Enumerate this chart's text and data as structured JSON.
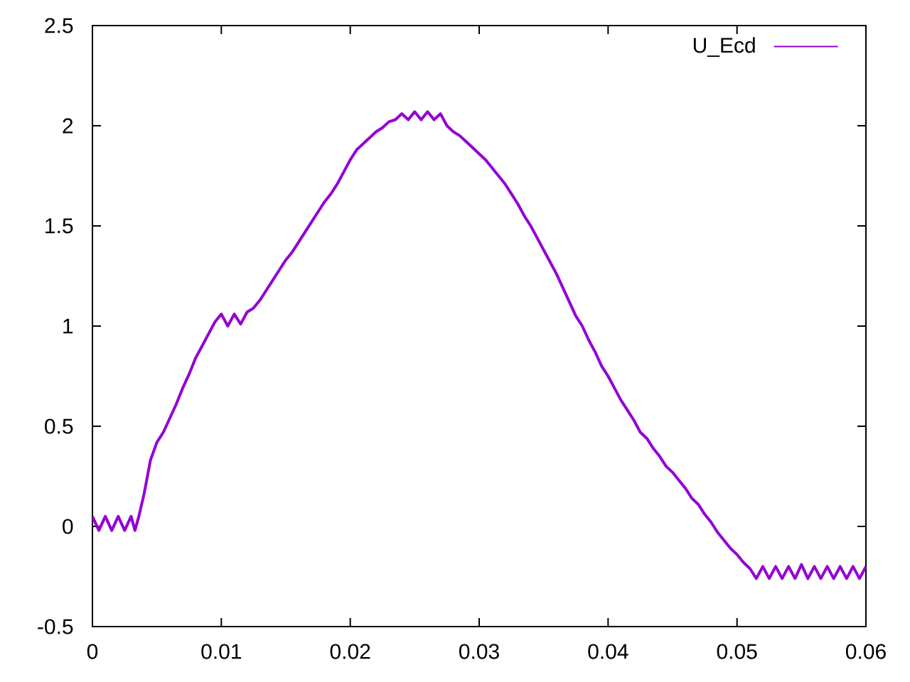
{
  "chart_data": {
    "type": "line",
    "series": [
      {
        "name": "U_Ecd",
        "color": "#9400d3",
        "x": [
          0,
          0.0005,
          0.001,
          0.0015,
          0.002,
          0.0025,
          0.003,
          0.0033,
          0.0036,
          0.004,
          0.0045,
          0.005,
          0.0055,
          0.006,
          0.0065,
          0.007,
          0.0075,
          0.008,
          0.0085,
          0.009,
          0.0095,
          0.01,
          0.0105,
          0.011,
          0.0115,
          0.012,
          0.0125,
          0.013,
          0.0135,
          0.014,
          0.0145,
          0.015,
          0.0155,
          0.016,
          0.0165,
          0.017,
          0.0175,
          0.018,
          0.0185,
          0.019,
          0.0195,
          0.02,
          0.0205,
          0.021,
          0.0215,
          0.022,
          0.0225,
          0.023,
          0.0235,
          0.024,
          0.0245,
          0.025,
          0.0255,
          0.026,
          0.0265,
          0.027,
          0.0275,
          0.028,
          0.0285,
          0.029,
          0.0295,
          0.03,
          0.0305,
          0.031,
          0.0315,
          0.032,
          0.0325,
          0.033,
          0.0335,
          0.034,
          0.0345,
          0.035,
          0.0355,
          0.036,
          0.0365,
          0.037,
          0.0375,
          0.038,
          0.0385,
          0.039,
          0.0395,
          0.04,
          0.0405,
          0.041,
          0.0415,
          0.042,
          0.0425,
          0.043,
          0.0435,
          0.044,
          0.0445,
          0.045,
          0.0455,
          0.046,
          0.0465,
          0.047,
          0.0475,
          0.048,
          0.0485,
          0.049,
          0.0495,
          0.05,
          0.0505,
          0.051,
          0.0515,
          0.052,
          0.0525,
          0.053,
          0.0535,
          0.054,
          0.0545,
          0.055,
          0.0555,
          0.056,
          0.0565,
          0.057,
          0.0575,
          0.058,
          0.0585,
          0.059,
          0.0595,
          0.06
        ],
        "values": [
          0.05,
          -0.02,
          0.05,
          -0.02,
          0.05,
          -0.02,
          0.05,
          -0.02,
          0.05,
          0.16,
          0.33,
          0.42,
          0.47,
          0.54,
          0.61,
          0.69,
          0.76,
          0.84,
          0.9,
          0.96,
          1.02,
          1.06,
          1.0,
          1.06,
          1.01,
          1.07,
          1.09,
          1.13,
          1.18,
          1.23,
          1.28,
          1.33,
          1.37,
          1.42,
          1.47,
          1.52,
          1.57,
          1.62,
          1.66,
          1.71,
          1.77,
          1.83,
          1.88,
          1.91,
          1.94,
          1.97,
          1.99,
          2.02,
          2.03,
          2.06,
          2.03,
          2.07,
          2.03,
          2.07,
          2.03,
          2.06,
          2.0,
          1.97,
          1.95,
          1.92,
          1.89,
          1.86,
          1.83,
          1.79,
          1.75,
          1.71,
          1.66,
          1.61,
          1.55,
          1.5,
          1.44,
          1.38,
          1.32,
          1.26,
          1.19,
          1.12,
          1.05,
          1.0,
          0.93,
          0.87,
          0.8,
          0.75,
          0.69,
          0.63,
          0.58,
          0.53,
          0.47,
          0.44,
          0.39,
          0.35,
          0.3,
          0.27,
          0.23,
          0.19,
          0.14,
          0.11,
          0.06,
          0.02,
          -0.03,
          -0.07,
          -0.11,
          -0.14,
          -0.18,
          -0.21,
          -0.26,
          -0.2,
          -0.26,
          -0.2,
          -0.26,
          -0.2,
          -0.26,
          -0.19,
          -0.26,
          -0.2,
          -0.26,
          -0.2,
          -0.26,
          -0.2,
          -0.26,
          -0.2,
          -0.26,
          -0.2
        ]
      }
    ],
    "xlim": [
      0,
      0.06
    ],
    "ylim": [
      -0.5,
      2.5
    ],
    "xticks": [
      0,
      0.01,
      0.02,
      0.03,
      0.04,
      0.05,
      0.06
    ],
    "yticks": [
      -0.5,
      0,
      0.5,
      1,
      1.5,
      2,
      2.5
    ],
    "legend": "top right",
    "line_style": "solid",
    "marker": "none"
  }
}
